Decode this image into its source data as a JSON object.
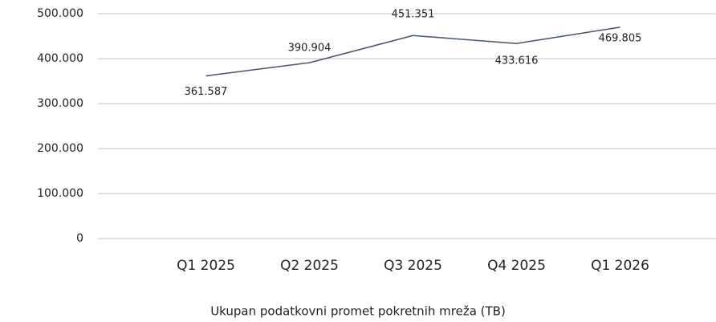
{
  "chart_data": {
    "type": "line",
    "categories": [
      "Q1 2025",
      "Q2 2025",
      "Q3 2025",
      "Q4 2025",
      "Q1 2026"
    ],
    "series": [
      {
        "name": "Ukupan podatkovni promet pokretnih mreža (TB)",
        "color": "#44546a",
        "values": [
          361587,
          390904,
          451351,
          433616,
          469805
        ],
        "value_labels": [
          "361.587",
          "390.904",
          "451.351",
          "433.616",
          "469.805"
        ]
      }
    ],
    "ylim": [
      0,
      500000
    ],
    "yticks": [
      0,
      {
        "value": 100000,
        "label": "100.000"
      },
      {
        "value": 200000,
        "label": "200.000"
      },
      {
        "value": 300000,
        "label": "300.000"
      },
      {
        "value": 400000,
        "label": "400.000"
      },
      {
        "value": 500000,
        "label": "500.000"
      }
    ],
    "grid": true,
    "legend": "bottom"
  }
}
